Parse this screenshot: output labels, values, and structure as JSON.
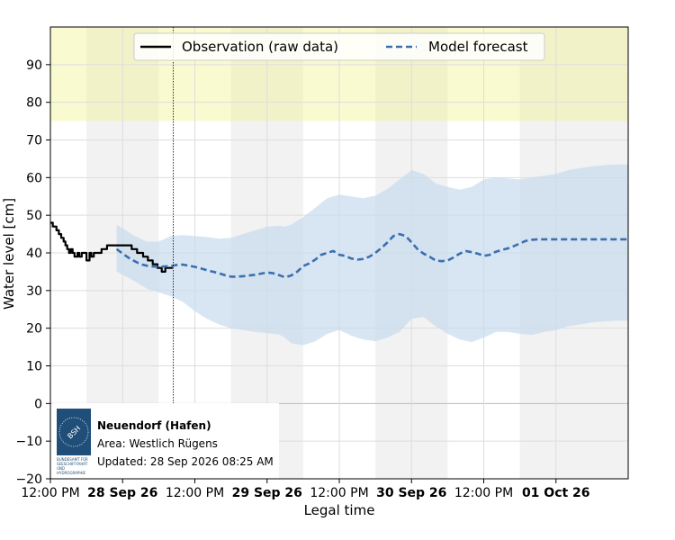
{
  "chart_data": {
    "type": "line",
    "xlabel": "Legal time",
    "ylabel": "Water level [cm]",
    "ylim": [
      -20,
      100
    ],
    "yticks": [
      -20,
      -10,
      0,
      10,
      20,
      30,
      40,
      50,
      60,
      70,
      80,
      90
    ],
    "xlim": [
      -12,
      84
    ],
    "x_unit": "hours relative to 28 Sep 26 00:00",
    "xticks": [
      {
        "x": -12,
        "label": "12:00 PM",
        "bold": false
      },
      {
        "x": 0,
        "label": "28 Sep 26",
        "bold": true
      },
      {
        "x": 12,
        "label": "12:00 PM",
        "bold": false
      },
      {
        "x": 24,
        "label": "29 Sep 26",
        "bold": true
      },
      {
        "x": 36,
        "label": "12:00 PM",
        "bold": false
      },
      {
        "x": 48,
        "label": "30 Sep 26",
        "bold": true
      },
      {
        "x": 60,
        "label": "12:00 PM",
        "bold": false
      },
      {
        "x": 72,
        "label": "01 Oct 26",
        "bold": true
      }
    ],
    "current_time_x": 8.4,
    "threshold_band": {
      "from": 75,
      "to": 100,
      "color": "#fafad0"
    },
    "night_bands": [
      [
        -6,
        6
      ],
      [
        18,
        30
      ],
      [
        42,
        54
      ],
      [
        66,
        84
      ]
    ],
    "legend": {
      "placement": "top-center",
      "entries": [
        "Observation (raw data)",
        "Model forecast"
      ]
    },
    "series": [
      {
        "name": "Observation (raw data)",
        "style": "solid",
        "color": "#000000",
        "x": [
          -12,
          -11.6,
          -11.6,
          -11,
          -11,
          -10.6,
          -10.6,
          -10.2,
          -10.2,
          -9.8,
          -9.8,
          -9.5,
          -9.5,
          -9.2,
          -9.2,
          -8.9,
          -8.9,
          -8.6,
          -8.6,
          -8.3,
          -8.3,
          -8,
          -8,
          -7.5,
          -7.5,
          -7.2,
          -7.2,
          -6.8,
          -6.8,
          -6,
          -6,
          -5.5,
          -5.5,
          -5.2,
          -5.2,
          -4.8,
          -4.8,
          -4.2,
          -4.2,
          -3.5,
          -3.5,
          -3,
          -3,
          -2.6,
          -2.6,
          1.5,
          1.5,
          2.4,
          2.4,
          3.4,
          3.4,
          4.2,
          4.2,
          5,
          5,
          5.8,
          5.8,
          6.5,
          6.5,
          7.1,
          7.1,
          7.7,
          7.7,
          8.3
        ],
        "y": [
          48,
          48,
          47,
          47,
          46,
          46,
          45,
          45,
          44,
          44,
          43,
          43,
          42,
          42,
          41,
          41,
          40,
          40,
          41,
          41,
          40,
          40,
          39,
          39,
          40,
          40,
          39,
          39,
          40,
          40,
          38,
          38,
          40,
          40,
          39,
          39,
          40,
          40,
          40,
          40,
          41,
          41,
          41,
          41,
          42,
          42,
          41,
          41,
          40,
          40,
          39,
          39,
          38,
          38,
          37,
          37,
          36,
          36,
          35,
          35,
          36,
          36,
          36,
          36
        ]
      },
      {
        "name": "Model forecast",
        "style": "dashed",
        "color": "#3a6fb0",
        "x": [
          -1,
          0,
          1,
          2,
          3,
          4,
          5,
          6,
          7,
          8,
          9,
          10,
          11,
          12,
          13,
          14,
          15,
          16,
          17,
          18,
          19,
          20,
          21,
          22,
          23,
          24,
          25,
          26,
          27,
          28,
          29,
          30,
          31,
          32,
          33,
          34,
          35,
          36,
          37,
          38,
          39,
          40,
          41,
          42,
          43,
          44,
          45,
          46,
          47,
          48,
          49,
          50,
          51,
          52,
          53,
          54,
          55,
          56,
          57,
          58,
          59,
          60,
          61,
          62,
          63,
          64,
          65,
          66,
          67,
          68,
          69,
          70,
          71,
          72,
          73,
          74,
          75,
          76,
          77,
          78,
          79,
          80,
          81,
          82,
          83,
          84
        ],
        "y": [
          41,
          39.8,
          38.7,
          37.8,
          37,
          36.6,
          36.4,
          36.3,
          36.4,
          36.5,
          36.8,
          36.9,
          36.6,
          36.3,
          35.9,
          35.4,
          35.0,
          34.6,
          34.1,
          33.7,
          33.7,
          33.8,
          34.0,
          34.2,
          34.5,
          34.8,
          34.6,
          34.1,
          33.5,
          34.0,
          35.0,
          36.5,
          37.2,
          38.2,
          39.5,
          40.0,
          40.5,
          39.5,
          39.2,
          38.5,
          38.2,
          38.4,
          39.0,
          40.0,
          41.3,
          42.8,
          44.5,
          45.0,
          44.5,
          42.8,
          41.0,
          39.8,
          39.0,
          38.0,
          37.8,
          38.0,
          38.8,
          39.8,
          40.5,
          40.2,
          39.8,
          39.2,
          39.5,
          40.3,
          40.8,
          41.2,
          41.8,
          42.5,
          43.2,
          43.5,
          43.6,
          43.6,
          43.6,
          43.6,
          43.6,
          43.6,
          43.6,
          43.6,
          43.6,
          43.6,
          43.6,
          43.6,
          43.6,
          43.6,
          43.6,
          43.6
        ]
      }
    ],
    "uncertainty_band": {
      "name": "Forecast uncertainty",
      "color": "#c8dcee",
      "x": [
        -1,
        2,
        4,
        6,
        8,
        10,
        12,
        14,
        16,
        18,
        20,
        22,
        24,
        26,
        27,
        28,
        30,
        32,
        34,
        36,
        38,
        40,
        42,
        44,
        46,
        48,
        50,
        52,
        54,
        56,
        58,
        60,
        62,
        64,
        66,
        68,
        70,
        72,
        74,
        76,
        78,
        80,
        82,
        84
      ],
      "upper": [
        47.5,
        44.5,
        43.0,
        43.0,
        44.5,
        44.7,
        44.5,
        44.2,
        43.8,
        44.0,
        45.0,
        46.0,
        47.0,
        47.2,
        47.0,
        47.5,
        49.5,
        52.0,
        54.5,
        55.5,
        55.0,
        54.5,
        55.2,
        57.0,
        59.5,
        62.0,
        61.0,
        58.5,
        57.5,
        56.8,
        57.5,
        59.5,
        60.0,
        59.8,
        59.5,
        60.0,
        60.5,
        61.0,
        62.0,
        62.5,
        63.0,
        63.3,
        63.5,
        63.5
      ],
      "lower": [
        35.0,
        32.5,
        30.5,
        29.5,
        28.5,
        27.0,
        24.5,
        22.5,
        21.0,
        20.0,
        19.5,
        19.0,
        18.7,
        18.3,
        17.5,
        16.0,
        15.5,
        16.5,
        18.5,
        19.5,
        18.0,
        17.0,
        16.5,
        17.5,
        19.0,
        22.5,
        23.0,
        20.5,
        18.5,
        17.0,
        16.3,
        17.5,
        19.0,
        19.0,
        18.5,
        18.2,
        19.0,
        19.5,
        20.5,
        21.0,
        21.5,
        21.8,
        22.0,
        22.0
      ]
    }
  },
  "info_box": {
    "title": "Neuendorf (Hafen)",
    "area": "Area: Westlich Rügens",
    "updated": "Updated: 28 Sep 2026 08:25 AM",
    "logo_label": "BSH",
    "logo_caption_lines": [
      "BUNDESAMT FÜR",
      "SEESCHIFFFAHRT",
      "UND",
      "HYDROGRAPHIE"
    ]
  },
  "colors": {
    "observation": "#000000",
    "forecast": "#3a6fb0",
    "band": "#c8dcee",
    "night": "#f2f2f2",
    "threshold": "#fafad0",
    "grid": "#dddddd",
    "logo": "#1f4e79"
  }
}
